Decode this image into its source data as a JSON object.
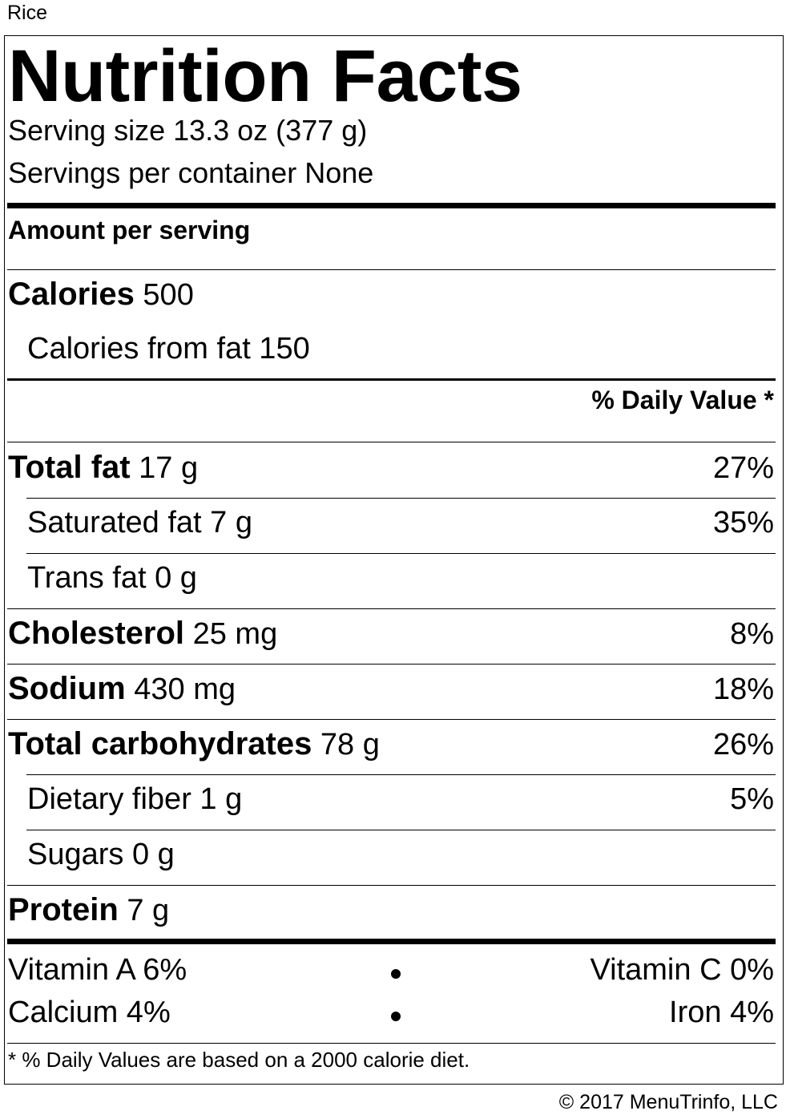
{
  "product_name": "Rice",
  "title": "Nutrition Facts",
  "serving_size": "Serving size 13.3 oz (377 g)",
  "servings_per_container": "Servings per container None",
  "amount_per_serving": "Amount per serving",
  "calories": {
    "label": "Calories",
    "value": "500"
  },
  "calories_from_fat": "Calories from fat 150",
  "daily_value_header": "% Daily Value *",
  "nutrients": {
    "total_fat": {
      "label": "Total fat",
      "amount": "17 g",
      "dv": "27%"
    },
    "saturated_fat": {
      "label": "Saturated fat 7 g",
      "dv": "35%"
    },
    "trans_fat": {
      "label": "Trans fat 0 g"
    },
    "cholesterol": {
      "label": "Cholesterol",
      "amount": "25 mg",
      "dv": "8%"
    },
    "sodium": {
      "label": "Sodium",
      "amount": "430 mg",
      "dv": "18%"
    },
    "total_carbohydrates": {
      "label": "Total carbohydrates",
      "amount": "78 g",
      "dv": "26%"
    },
    "dietary_fiber": {
      "label": "Dietary fiber 1 g",
      "dv": "5%"
    },
    "sugars": {
      "label": "Sugars 0 g"
    },
    "protein": {
      "label": "Protein",
      "amount": "7 g"
    }
  },
  "vitamins": {
    "vitamin_a": "Vitamin A 6%",
    "vitamin_c": "Vitamin C 0%",
    "calcium": "Calcium 4%",
    "iron": "Iron 4%"
  },
  "footnote": "* % Daily Values are based on a 2000 calorie diet.",
  "copyright": "© 2017 MenuTrinfo, LLC"
}
